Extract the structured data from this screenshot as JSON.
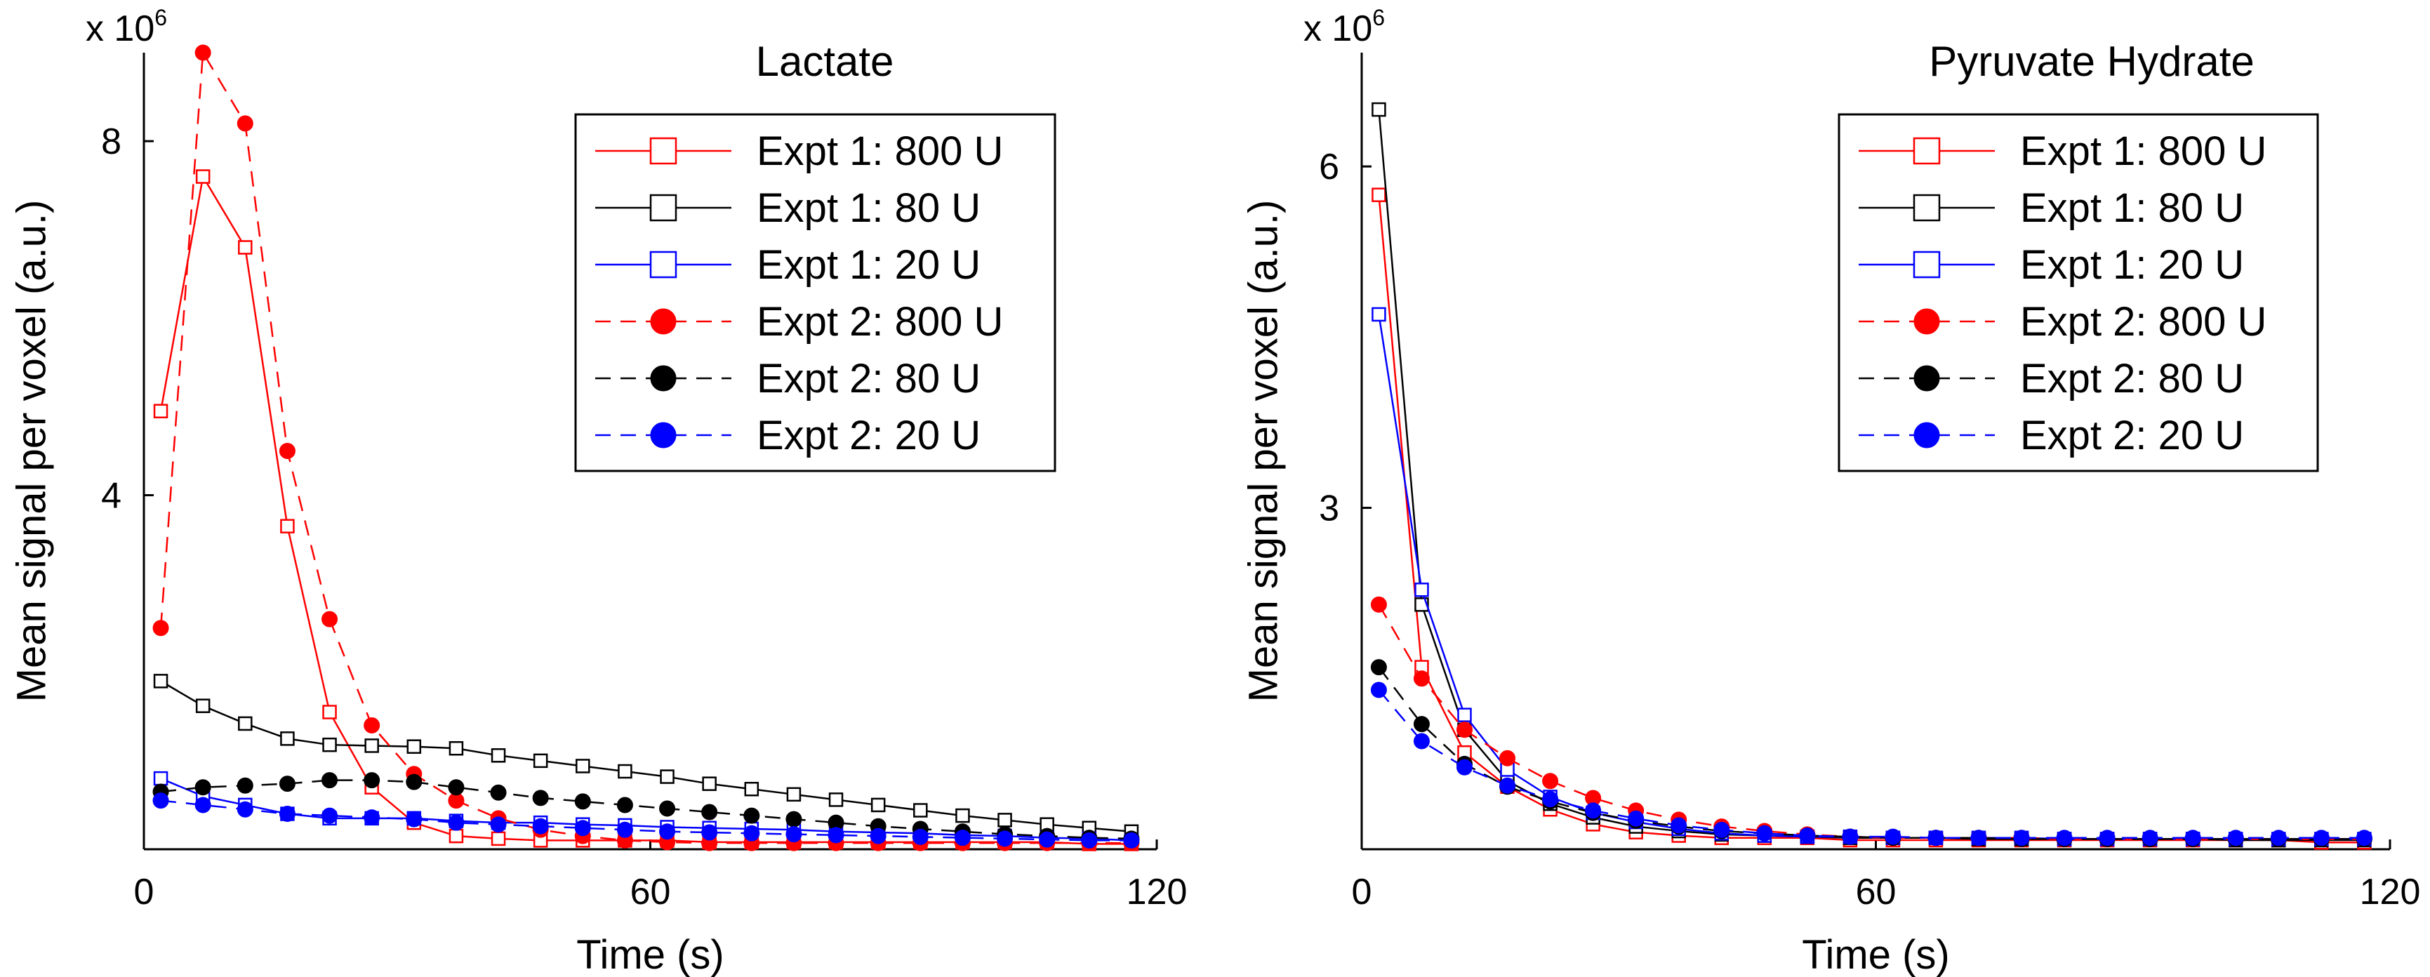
{
  "chart_data": [
    {
      "type": "line",
      "title": "Lactate",
      "xlabel": "Time (s)",
      "ylabel": "Mean signal per voxel (a.u.)",
      "exponent_prefix": "x 10",
      "exponent_power": "6",
      "xlim": [
        0,
        120
      ],
      "ylim": [
        0,
        9
      ],
      "xticks": [
        0,
        60,
        120
      ],
      "yticks": [
        4,
        8
      ],
      "legend_position": "top-right",
      "series": [
        {
          "name": "Expt 1: 800 U",
          "color": "#ff0000",
          "marker": "square",
          "dash": "solid",
          "x": [
            2,
            7,
            12,
            17,
            22,
            27,
            32,
            37,
            42,
            47,
            52,
            57,
            62,
            67,
            72,
            77,
            82,
            87,
            92,
            97,
            102,
            107,
            112,
            117
          ],
          "y": [
            4.95,
            7.6,
            6.8,
            3.65,
            1.55,
            0.7,
            0.3,
            0.15,
            0.12,
            0.1,
            0.1,
            0.1,
            0.1,
            0.08,
            0.08,
            0.08,
            0.08,
            0.08,
            0.08,
            0.08,
            0.08,
            0.08,
            0.06,
            0.06
          ]
        },
        {
          "name": "Expt 1: 80 U",
          "color": "#000000",
          "marker": "square",
          "dash": "solid",
          "x": [
            2,
            7,
            12,
            17,
            22,
            27,
            32,
            37,
            42,
            47,
            52,
            57,
            62,
            67,
            72,
            77,
            82,
            87,
            92,
            97,
            102,
            107,
            112,
            117
          ],
          "y": [
            1.9,
            1.62,
            1.42,
            1.25,
            1.18,
            1.17,
            1.16,
            1.14,
            1.06,
            1.0,
            0.94,
            0.88,
            0.82,
            0.74,
            0.68,
            0.62,
            0.56,
            0.5,
            0.44,
            0.38,
            0.33,
            0.28,
            0.24,
            0.2
          ]
        },
        {
          "name": "Expt 1: 20 U",
          "color": "#0000ff",
          "marker": "square",
          "dash": "solid",
          "x": [
            2,
            7,
            12,
            17,
            22,
            27,
            32,
            37,
            42,
            47,
            52,
            57,
            62,
            67,
            72,
            77,
            82,
            87,
            92,
            97,
            102,
            107,
            112,
            117
          ],
          "y": [
            0.8,
            0.6,
            0.5,
            0.4,
            0.35,
            0.35,
            0.35,
            0.32,
            0.3,
            0.3,
            0.28,
            0.27,
            0.25,
            0.24,
            0.23,
            0.22,
            0.2,
            0.19,
            0.18,
            0.16,
            0.15,
            0.13,
            0.12,
            0.1
          ]
        },
        {
          "name": "Expt 2: 800 U",
          "color": "#ff0000",
          "marker": "circle",
          "dash": "dashed",
          "x": [
            2,
            7,
            12,
            17,
            22,
            27,
            32,
            37,
            42,
            47,
            52,
            57,
            62,
            67,
            72,
            77,
            82,
            87,
            92,
            97,
            102,
            107,
            112,
            117
          ],
          "y": [
            2.5,
            9.0,
            8.2,
            4.5,
            2.6,
            1.4,
            0.85,
            0.55,
            0.35,
            0.22,
            0.15,
            0.1,
            0.08,
            0.07,
            0.07,
            0.07,
            0.07,
            0.07,
            0.07,
            0.07,
            0.07,
            0.07,
            0.07,
            0.07
          ]
        },
        {
          "name": "Expt 2: 80 U",
          "color": "#000000",
          "marker": "circle",
          "dash": "dashed",
          "x": [
            2,
            7,
            12,
            17,
            22,
            27,
            32,
            37,
            42,
            47,
            52,
            57,
            62,
            67,
            72,
            77,
            82,
            87,
            92,
            97,
            102,
            107,
            112,
            117
          ],
          "y": [
            0.65,
            0.7,
            0.72,
            0.74,
            0.78,
            0.78,
            0.76,
            0.7,
            0.64,
            0.58,
            0.54,
            0.5,
            0.46,
            0.42,
            0.38,
            0.34,
            0.3,
            0.26,
            0.23,
            0.2,
            0.17,
            0.15,
            0.13,
            0.12
          ]
        },
        {
          "name": "Expt 2: 20 U",
          "color": "#0000ff",
          "marker": "circle",
          "dash": "dashed",
          "x": [
            2,
            7,
            12,
            17,
            22,
            27,
            32,
            37,
            42,
            47,
            52,
            57,
            62,
            67,
            72,
            77,
            82,
            87,
            92,
            97,
            102,
            107,
            112,
            117
          ],
          "y": [
            0.55,
            0.5,
            0.45,
            0.4,
            0.38,
            0.36,
            0.34,
            0.3,
            0.28,
            0.26,
            0.24,
            0.22,
            0.2,
            0.19,
            0.18,
            0.17,
            0.16,
            0.15,
            0.14,
            0.13,
            0.12,
            0.11,
            0.1,
            0.1
          ]
        }
      ]
    },
    {
      "type": "line",
      "title": "Pyruvate Hydrate",
      "xlabel": "Time (s)",
      "ylabel": "Mean signal per voxel (a.u.)",
      "exponent_prefix": "x 10",
      "exponent_power": "6",
      "xlim": [
        0,
        120
      ],
      "ylim": [
        0,
        7
      ],
      "xticks": [
        0,
        60,
        120
      ],
      "yticks": [
        3,
        6
      ],
      "legend_position": "top-right",
      "series": [
        {
          "name": "Expt 1: 800 U",
          "color": "#ff0000",
          "marker": "square",
          "dash": "solid",
          "x": [
            2,
            7,
            12,
            17,
            22,
            27,
            32,
            37,
            42,
            47,
            52,
            57,
            62,
            67,
            72,
            77,
            82,
            87,
            92,
            97,
            102,
            107,
            112,
            117
          ],
          "y": [
            5.75,
            1.6,
            0.85,
            0.55,
            0.35,
            0.22,
            0.15,
            0.12,
            0.1,
            0.1,
            0.1,
            0.08,
            0.08,
            0.08,
            0.08,
            0.08,
            0.08,
            0.08,
            0.08,
            0.08,
            0.08,
            0.08,
            0.06,
            0.06
          ]
        },
        {
          "name": "Expt 1: 80 U",
          "color": "#000000",
          "marker": "square",
          "dash": "solid",
          "x": [
            2,
            7,
            12,
            17,
            22,
            27,
            32,
            37,
            42,
            47,
            52,
            57,
            62,
            67,
            72,
            77,
            82,
            87,
            92,
            97,
            102,
            107,
            112,
            117
          ],
          "y": [
            6.5,
            2.15,
            1.05,
            0.6,
            0.4,
            0.28,
            0.2,
            0.16,
            0.13,
            0.12,
            0.11,
            0.1,
            0.1,
            0.1,
            0.09,
            0.09,
            0.09,
            0.09,
            0.09,
            0.09,
            0.08,
            0.08,
            0.08,
            0.08
          ]
        },
        {
          "name": "Expt 1: 20 U",
          "color": "#0000ff",
          "marker": "square",
          "dash": "solid",
          "x": [
            2,
            7,
            12,
            17,
            22,
            27,
            32,
            37,
            42,
            47,
            52,
            57,
            62,
            67,
            72,
            77,
            82,
            87,
            92,
            97,
            102,
            107,
            112,
            117
          ],
          "y": [
            4.7,
            2.28,
            1.18,
            0.7,
            0.46,
            0.32,
            0.24,
            0.18,
            0.14,
            0.12,
            0.11,
            0.11,
            0.1,
            0.1,
            0.1,
            0.1,
            0.09,
            0.09,
            0.09,
            0.09,
            0.09,
            0.09,
            0.09,
            0.09
          ]
        },
        {
          "name": "Expt 2: 800 U",
          "color": "#ff0000",
          "marker": "circle",
          "dash": "dashed",
          "x": [
            2,
            7,
            12,
            17,
            22,
            27,
            32,
            37,
            42,
            47,
            52,
            57,
            62,
            67,
            72,
            77,
            82,
            87,
            92,
            97,
            102,
            107,
            112,
            117
          ],
          "y": [
            2.15,
            1.5,
            1.05,
            0.8,
            0.6,
            0.45,
            0.34,
            0.26,
            0.2,
            0.16,
            0.13,
            0.11,
            0.1,
            0.1,
            0.1,
            0.1,
            0.09,
            0.09,
            0.09,
            0.09,
            0.09,
            0.09,
            0.09,
            0.09
          ]
        },
        {
          "name": "Expt 2: 80 U",
          "color": "#000000",
          "marker": "circle",
          "dash": "dashed",
          "x": [
            2,
            7,
            12,
            17,
            22,
            27,
            32,
            37,
            42,
            47,
            52,
            57,
            62,
            67,
            72,
            77,
            82,
            87,
            92,
            97,
            102,
            107,
            112,
            117
          ],
          "y": [
            1.6,
            1.1,
            0.75,
            0.55,
            0.42,
            0.32,
            0.25,
            0.2,
            0.16,
            0.14,
            0.12,
            0.11,
            0.1,
            0.1,
            0.1,
            0.09,
            0.09,
            0.09,
            0.09,
            0.09,
            0.09,
            0.09,
            0.09,
            0.09
          ]
        },
        {
          "name": "Expt 2: 20 U",
          "color": "#0000ff",
          "marker": "circle",
          "dash": "dashed",
          "x": [
            2,
            7,
            12,
            17,
            22,
            27,
            32,
            37,
            42,
            47,
            52,
            57,
            62,
            67,
            72,
            77,
            82,
            87,
            92,
            97,
            102,
            107,
            112,
            117
          ],
          "y": [
            1.4,
            0.95,
            0.72,
            0.56,
            0.44,
            0.34,
            0.27,
            0.21,
            0.17,
            0.14,
            0.12,
            0.11,
            0.11,
            0.1,
            0.1,
            0.1,
            0.1,
            0.1,
            0.1,
            0.1,
            0.1,
            0.1,
            0.1,
            0.1
          ]
        }
      ]
    }
  ]
}
